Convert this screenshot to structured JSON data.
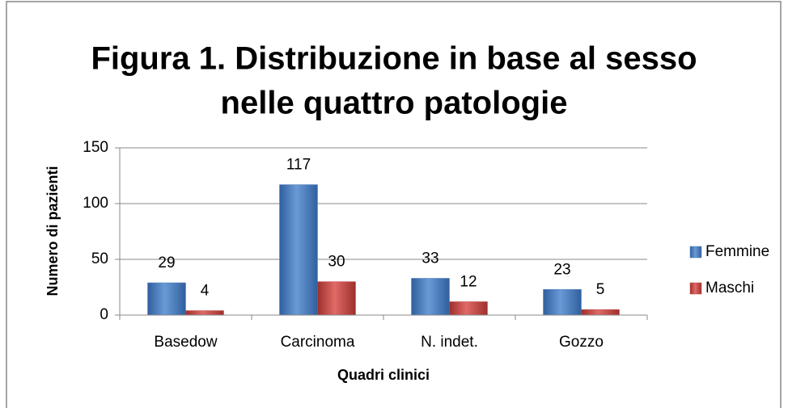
{
  "chart_data": {
    "type": "bar",
    "title": [
      "Figura 1. Distribuzione in base al sesso",
      "nelle quattro patologie"
    ],
    "y_label": "Numero di pazienti",
    "x_label": "Quadri clinici",
    "categories": [
      "Basedow",
      "Carcinoma",
      "N. indet.",
      "Gozzo"
    ],
    "series": [
      {
        "name": "Femmine",
        "color": "#4f81bd",
        "values": [
          29,
          117,
          33,
          23
        ]
      },
      {
        "name": "Maschi",
        "color": "#c0504d",
        "values": [
          4,
          30,
          12,
          5
        ]
      }
    ],
    "ylim": [
      0,
      150
    ],
    "yticks": [
      0,
      50,
      100,
      150
    ],
    "grid": true,
    "legend": "right"
  }
}
